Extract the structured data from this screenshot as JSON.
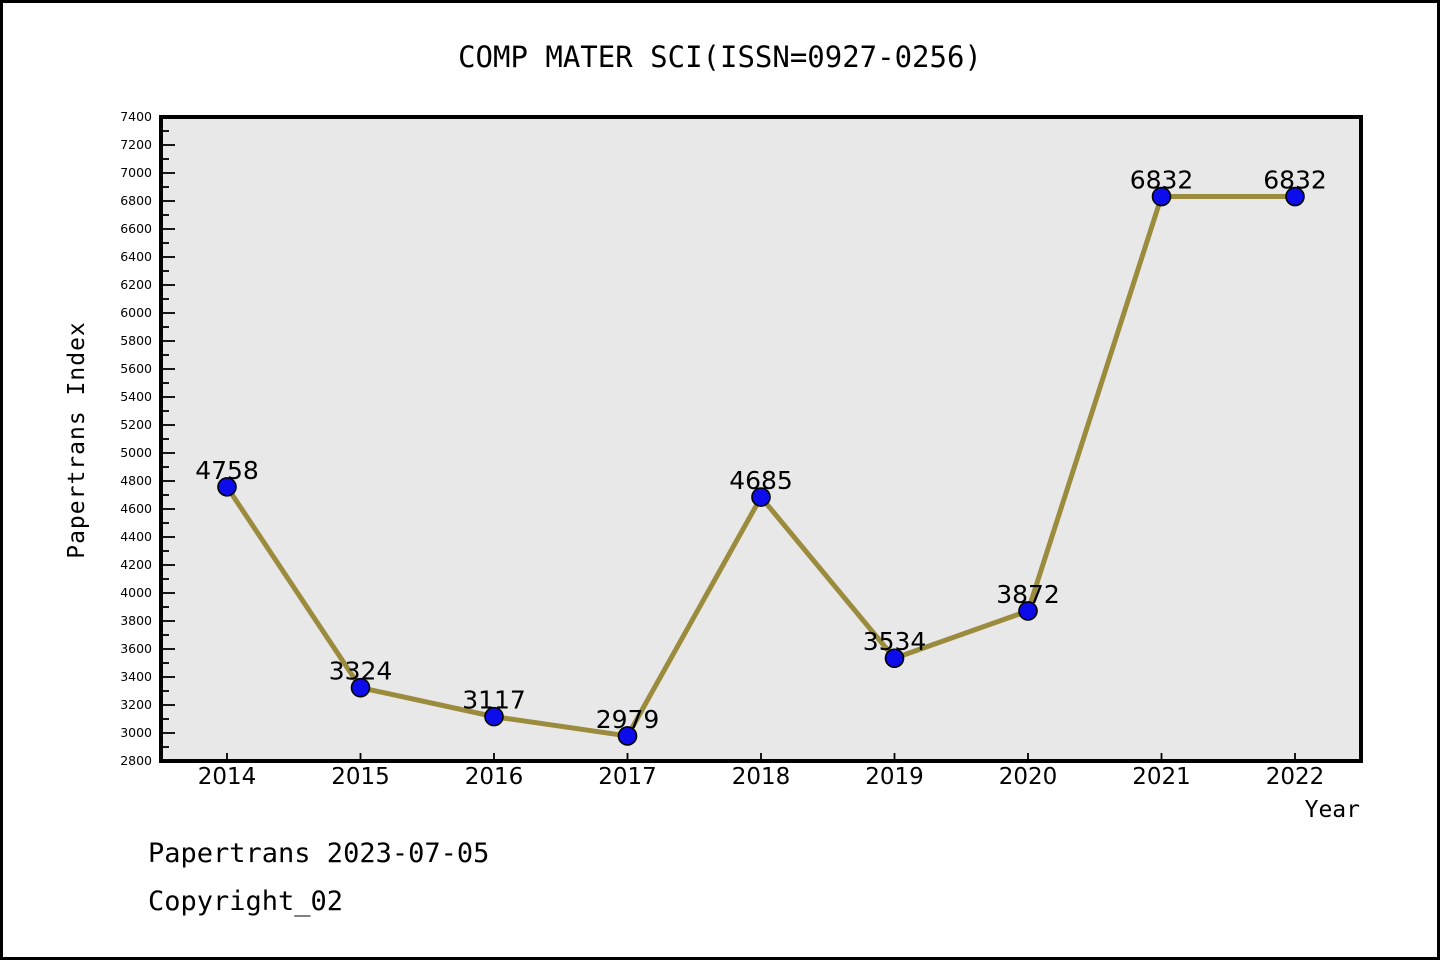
{
  "figure": {
    "footer_line1": "Papertrans 2023-07-05",
    "footer_line2": "Copyright_02",
    "frame_color": "#000000",
    "background": "#FFFFFF"
  },
  "chart_data": {
    "type": "line",
    "title": "COMP MATER SCI(ISSN=0927-0256)",
    "xlabel": "Year",
    "ylabel": "Papertrans Index",
    "categories": [
      2014,
      2015,
      2016,
      2017,
      2018,
      2019,
      2020,
      2021,
      2022
    ],
    "series": [
      {
        "name": "Papertrans Index",
        "values": [
          4758,
          3324,
          3117,
          2979,
          4685,
          3534,
          3872,
          6832,
          6832
        ]
      }
    ],
    "point_labels": [
      "4758",
      "3324",
      "3117",
      "2979",
      "4685",
      "3534",
      "3872",
      "6832",
      "6832"
    ],
    "ylim": [
      2800,
      7400
    ],
    "ytick_step": 200,
    "ytick_minor_step": 100,
    "grid": false,
    "legend_position": "none",
    "colors": {
      "line": "#9B8B3C",
      "marker_fill": "#0D0DEB",
      "marker_edge": "#000000",
      "plot_background": "#E8E8E8",
      "axis": "#000000",
      "text": "#000000"
    }
  }
}
